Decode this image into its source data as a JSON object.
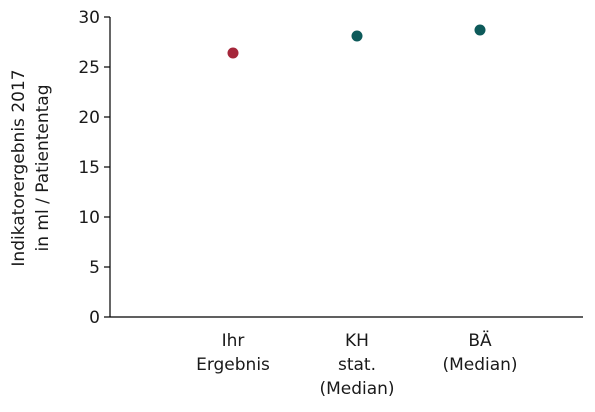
{
  "chart_data": {
    "type": "scatter",
    "categories": [
      [
        "Ihr",
        "Ergebnis"
      ],
      [
        "KH",
        "stat.",
        "(Median)"
      ],
      [
        "BÄ",
        "(Median)"
      ]
    ],
    "values": [
      26.4,
      28.1,
      28.7
    ],
    "point_colors": [
      "#a5263a",
      "#0d5a5a",
      "#0d5a5a"
    ],
    "ylabel": [
      "Indikatorergebnis 2017",
      "in ml / Patiententag"
    ],
    "ylim": [
      0,
      30
    ],
    "yticks": [
      "0",
      "5",
      "10",
      "15",
      "20",
      "25",
      "30"
    ],
    "grid": false,
    "legend": "none"
  }
}
